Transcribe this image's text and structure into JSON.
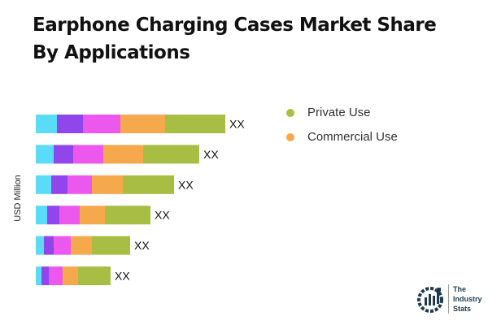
{
  "chart_data": {
    "type": "bar",
    "orientation": "horizontal",
    "stacked": true,
    "title": "Earphone Charging Cases Market Share By Applications",
    "ylabel": "USD Million",
    "categories": [
      "",
      "",
      "",
      "",
      "",
      ""
    ],
    "segment_colors": [
      "#5ADCF8",
      "#9146EB",
      "#EC58EE",
      "#F6A84C",
      "#A8BD43"
    ],
    "segments": [
      [
        26,
        32,
        46,
        55,
        74
      ],
      [
        22,
        24,
        37,
        49,
        69
      ],
      [
        19,
        20,
        30,
        38,
        63
      ],
      [
        14,
        15,
        25,
        31,
        56
      ],
      [
        10,
        12,
        21,
        26,
        47
      ],
      [
        7,
        9,
        17,
        19,
        40
      ]
    ],
    "data_labels": [
      "XX",
      "XX",
      "XX",
      "XX",
      "XX",
      "XX"
    ],
    "xlim": [
      0,
      250
    ],
    "grid": false,
    "legend": {
      "placement": "top-right",
      "entries": [
        {
          "name": "Private Use",
          "color": "#A8BD43"
        },
        {
          "name": "Commercial Use",
          "color": "#F6A84C"
        }
      ]
    }
  },
  "logo": {
    "text": [
      "The",
      "Industry",
      "Stats"
    ]
  }
}
